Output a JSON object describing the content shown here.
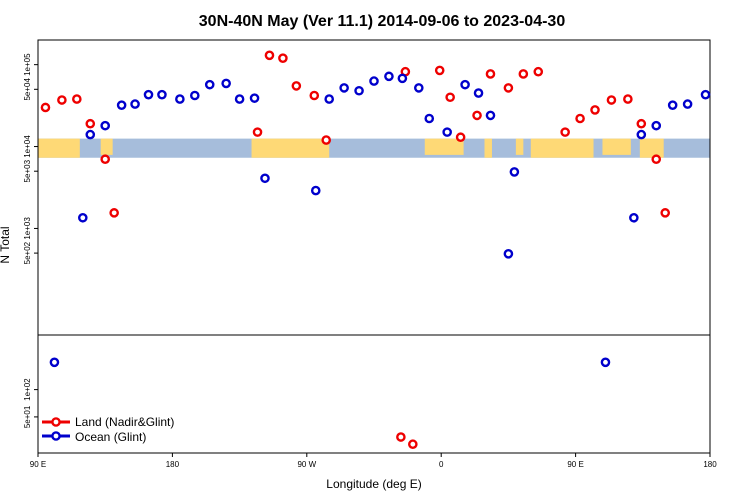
{
  "chart_data": {
    "type": "scatter",
    "title": "30N-40N May (Ver 11.1)   2014-09-06 to 2023-04-30",
    "xlabel": "Longitude (deg E)",
    "ylabel": "N Total",
    "x_ticks": [
      {
        "value": 90,
        "label": "90 E"
      },
      {
        "value": 180,
        "label": "180"
      },
      {
        "value": 270,
        "label": "90 W"
      },
      {
        "value": 360,
        "label": "0"
      },
      {
        "value": 450,
        "label": "90 E"
      },
      {
        "value": 540,
        "label": "180"
      }
    ],
    "xlim": [
      90,
      540
    ],
    "upper_panel": {
      "scale": "log",
      "ylim": [
        50,
        200000
      ],
      "y_ticks": [
        {
          "value": 100000,
          "label": "1e+05"
        },
        {
          "value": 50000,
          "label": "5e+04"
        },
        {
          "value": 10000,
          "label": "1e+04"
        },
        {
          "value": 5000,
          "label": "5e+03"
        },
        {
          "value": 1000,
          "label": "1e+03"
        },
        {
          "value": 500,
          "label": "5e+02"
        }
      ]
    },
    "lower_panel": {
      "scale": "log",
      "ylim": [
        20,
        400
      ],
      "y_ticks": [
        {
          "value": 100,
          "label": "1e+02"
        },
        {
          "value": 50,
          "label": "5e+01"
        }
      ]
    },
    "series": [
      {
        "name": "Land (Nadir&Glint)",
        "color": "#ee0000",
        "upper": [
          [
            95,
            30000
          ],
          [
            106,
            37000
          ],
          [
            116,
            38000
          ],
          [
            125,
            19000
          ],
          [
            135,
            7000
          ],
          [
            141,
            1550
          ],
          [
            237,
            15000
          ],
          [
            245,
            130000
          ],
          [
            254,
            120000
          ],
          [
            263,
            55000
          ],
          [
            275,
            42000
          ],
          [
            283,
            12000
          ],
          [
            336,
            82000
          ],
          [
            359,
            85000
          ],
          [
            366,
            40000
          ],
          [
            373,
            13000
          ],
          [
            384,
            24000
          ],
          [
            393,
            77000
          ],
          [
            405,
            52000
          ],
          [
            415,
            77000
          ],
          [
            425,
            82000
          ],
          [
            443,
            15000
          ],
          [
            453,
            22000
          ],
          [
            463,
            28000
          ],
          [
            474,
            37000
          ],
          [
            485,
            38000
          ],
          [
            494,
            19000
          ],
          [
            504,
            7000
          ],
          [
            510,
            1550
          ]
        ],
        "lower": [
          [
            333,
            30
          ],
          [
            341,
            25
          ]
        ]
      },
      {
        "name": "Ocean (Glint)",
        "color": "#0000cc",
        "upper": [
          [
            120,
            1350
          ],
          [
            125,
            14000
          ],
          [
            135,
            18000
          ],
          [
            146,
            32000
          ],
          [
            155,
            33000
          ],
          [
            164,
            43000
          ],
          [
            173,
            43000
          ],
          [
            185,
            38000
          ],
          [
            195,
            42000
          ],
          [
            205,
            57000
          ],
          [
            216,
            59000
          ],
          [
            225,
            38000
          ],
          [
            235,
            39000
          ],
          [
            242,
            4100
          ],
          [
            276,
            2900
          ],
          [
            285,
            38000
          ],
          [
            295,
            52000
          ],
          [
            305,
            48000
          ],
          [
            315,
            63000
          ],
          [
            325,
            72000
          ],
          [
            334,
            68000
          ],
          [
            345,
            52000
          ],
          [
            352,
            22000
          ],
          [
            364,
            15000
          ],
          [
            376,
            57000
          ],
          [
            385,
            45000
          ],
          [
            393,
            24000
          ],
          [
            405,
            490
          ],
          [
            409,
            4900
          ],
          [
            489,
            1350
          ],
          [
            494,
            14000
          ],
          [
            504,
            18000
          ],
          [
            515,
            32000
          ],
          [
            525,
            33000
          ],
          [
            537,
            43000
          ]
        ],
        "lower": [
          [
            101,
            200
          ],
          [
            470,
            200
          ]
        ]
      }
    ],
    "legend": {
      "position": "bottom-left",
      "entries": [
        "Land (Nadir&Glint)",
        "Ocean (Glint)"
      ]
    },
    "map_strip": {
      "ocean_color": "#a6bddb",
      "land_color": "#fed976"
    }
  }
}
